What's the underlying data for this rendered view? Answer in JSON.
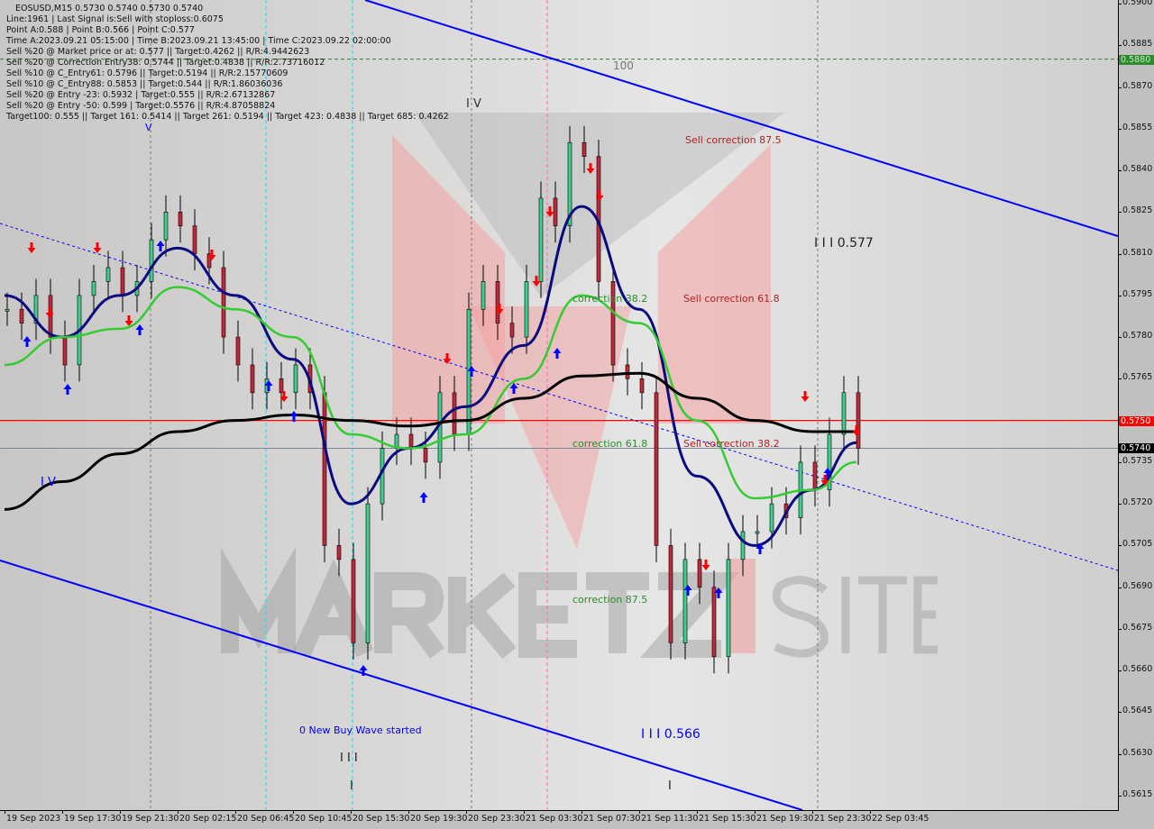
{
  "header": {
    "symbol_line": "EOSUSD,M15  0.5730 0.5740 0.5730 0.5740",
    "lines": [
      "Line:1961 | Last Signal is:Sell with stoploss:0.6075",
      "Point A:0.588 | Point B:0.566 | Point C:0.577",
      "Time A:2023.09.21 05:15:00 | Time B:2023.09.21 13:45:00 | Time C:2023.09.22 02:00:00",
      "Sell %20 @ Market price or at: 0.577 || Target:0.4262 || R/R:4.9442623",
      "Sell %20 @ Correction Entry38: 0.5744 || Target:0.4838 || R/R:2.73716012",
      "Sell %10 @ C_Entry61: 0.5796 || Target:0.5194 || R/R:2.15770609",
      "Sell %10 @ C_Entry88: 0.5853 || Target:0.544 || R/R:1.86036036",
      "Sell %20 @ Entry -23: 0.5932 | Target:0.555 || R/R:2.67132867",
      "Sell %20 @ Entry -50: 0.599 | Target:0.5576 || R/R:4.87058824",
      "Target100: 0.555 || Target 161: 0.5414 || Target 261: 0.5194 || Target 423: 0.4838 || Target 685: 0.4262"
    ]
  },
  "annotations": {
    "a100": "100",
    "sell875": "Sell correction 87.5",
    "iv_top": "I V",
    "iv_left": "I V",
    "v_mark": "V",
    "iii577": "I I I 0.577",
    "sell618": "Sell correction 61.8",
    "corr382": "correction 38.2",
    "corr618": "correction 61.8",
    "sell382": "Sell correction 38.2",
    "corr875": "correction 87.5",
    "newbuy": "0 New Buy Wave started",
    "iii566": "I I I 0.566",
    "iii": "I I I",
    "i1": "I",
    "i2": "I"
  },
  "watermark": "MARKETZ SITE",
  "price_tags": [
    {
      "label": "0.5880",
      "value": 0.588,
      "bg": "#2e8b2e",
      "fg": "#c8e6c8"
    },
    {
      "label": "0.5750",
      "value": 0.575,
      "bg": "#ff0000",
      "fg": "#ffffff"
    },
    {
      "label": "0.5740",
      "value": 0.574,
      "bg": "#000000",
      "fg": "#ffffff"
    }
  ],
  "colors": {
    "fast_ma": "#0a0a80",
    "mid_ma": "#33cc33",
    "slow_ma": "#000000",
    "channel": "#0000ff",
    "bull": "#3ecf8e",
    "bear": "#c0283c",
    "resistance": "#ff0000"
  },
  "chart_data": {
    "type": "bar",
    "title": "EOSUSD,M15",
    "ylim": [
      0.5607,
      0.5902
    ],
    "y_ticks": [
      "0.5900",
      "0.5885",
      "0.5870",
      "0.5855",
      "0.5840",
      "0.5825",
      "0.5810",
      "0.5795",
      "0.5780",
      "0.5765",
      "0.5750",
      "0.5735",
      "0.5720",
      "0.5705",
      "0.5690",
      "0.5675",
      "0.5660",
      "0.5645",
      "0.5630",
      "0.5615"
    ],
    "x_ticks": [
      "19 Sep 2023",
      "19 Sep 17:30",
      "19 Sep 21:30",
      "20 Sep 02:15",
      "20 Sep 06:45",
      "20 Sep 10:45",
      "20 Sep 15:30",
      "20 Sep 19:30",
      "20 Sep 23:30",
      "21 Sep 03:30",
      "21 Sep 07:30",
      "21 Sep 11:30",
      "21 Sep 15:30",
      "21 Sep 19:30",
      "21 Sep 23:30",
      "22 Sep 03:45"
    ],
    "hourly_close": [
      0.579,
      0.5785,
      0.5795,
      0.578,
      0.577,
      0.5795,
      0.58,
      0.5805,
      0.5795,
      0.58,
      0.5815,
      0.5825,
      0.582,
      0.581,
      0.5805,
      0.578,
      0.577,
      0.576,
      0.5765,
      0.576,
      0.577,
      0.576,
      0.5705,
      0.57,
      0.567,
      0.572,
      0.574,
      0.5745,
      0.574,
      0.5735,
      0.576,
      0.5745,
      0.579,
      0.58,
      0.5785,
      0.578,
      0.58,
      0.583,
      0.582,
      0.585,
      0.5845,
      0.58,
      0.577,
      0.5765,
      0.576,
      0.5705,
      0.567,
      0.57,
      0.569,
      0.5665,
      0.57,
      0.571,
      0.571,
      0.572,
      0.5715,
      0.5735,
      0.5725,
      0.5745,
      0.576,
      0.574
    ],
    "series": [
      {
        "key": "fast_ma",
        "values": [
          0.5795,
          0.578,
          0.5795,
          0.5812,
          0.5795,
          0.5772,
          0.572,
          0.574,
          0.5755,
          0.5777,
          0.5827,
          0.579,
          0.573,
          0.5705,
          0.5725,
          0.5742
        ]
      },
      {
        "key": "mid_ma",
        "values": [
          0.577,
          0.578,
          0.5783,
          0.5798,
          0.579,
          0.578,
          0.5745,
          0.574,
          0.5745,
          0.5765,
          0.5795,
          0.5785,
          0.575,
          0.5722,
          0.5725,
          0.5735
        ]
      },
      {
        "key": "slow_ma",
        "values": [
          0.5718,
          0.5728,
          0.5738,
          0.5746,
          0.575,
          0.5752,
          0.575,
          0.5748,
          0.575,
          0.5758,
          0.5766,
          0.5767,
          0.5758,
          0.575,
          0.5746,
          0.5746
        ]
      }
    ],
    "levels": [
      0.588,
      0.575,
      0.574
    ],
    "grid": false
  }
}
